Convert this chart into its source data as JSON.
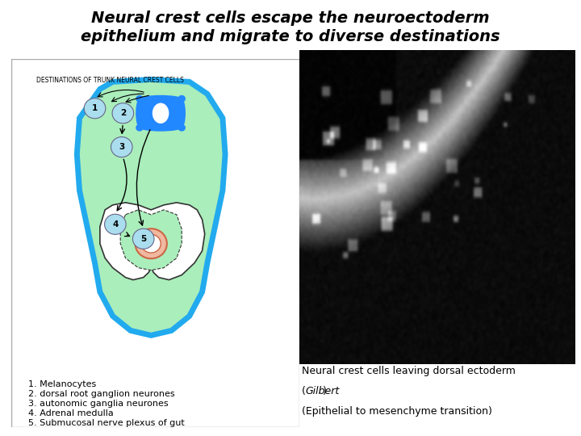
{
  "title_line1": "Neural crest cells escape the neuroectoderm",
  "title_line2": "epithelium and migrate to diverse destinations",
  "title_fontsize": 14,
  "title_style": "italic",
  "title_weight": "bold",
  "caption_line1": "Neural crest cells leaving dorsal ectoderm",
  "caption_line2": "(Gilbert)",
  "caption_line3": "(Epithelial to mesenchyme transition)",
  "caption_fontsize": 9,
  "legend_items": [
    "1. Melanocytes",
    "2. dorsal root ganglion neurones",
    "3. autonomic ganglia neurones",
    "4. Adrenal medulla",
    "5. Submucosal nerve plexus of gut"
  ],
  "diagram_title": "DESTINATIONS OF TRUNK NEURAL CREST CELLS",
  "bg_color": "#ffffff",
  "body_fill": "#aaeebb",
  "body_stroke": "#22aaee",
  "neural_tube_fill": "#2288ff",
  "gut_fill": "#ffffff",
  "gut_inner_fill": "#f0b8a0",
  "circle_fill": "#aaddee",
  "circle_stroke": "#666688",
  "arrow_color": "#000000",
  "legend_fontsize": 8
}
